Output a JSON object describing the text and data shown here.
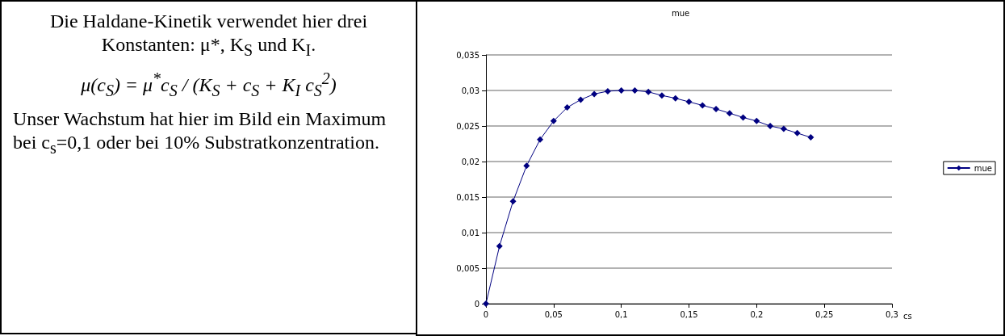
{
  "chart_data": {
    "type": "line",
    "title": "mue",
    "xlabel": "cs",
    "annotations": [
      "Die Haldane-Kinetik verwendet hier drei Konstanten: μ*, K$_{S}$ und K$_{I}$.",
      "μ(c$_{S}$) = μ$^{*}$c$_{S}$ / (K$_{S}$ + c$_{S}$ + K$_{I}$ c$_{S}$$^{2}$)",
      "Unser Wachstum hat hier im Bild ein Maximum bei c$_{s}$=0,1 oder bei 10% Substratkonzentration."
    ],
    "x": [
      0,
      0.01,
      0.02,
      0.03,
      0.04,
      0.05,
      0.06,
      0.07,
      0.08,
      0.09,
      0.1,
      0.11,
      0.12,
      0.13,
      0.14,
      0.15,
      0.16,
      0.17,
      0.18,
      0.19,
      0.2,
      0.21,
      0.22,
      0.23,
      0.24
    ],
    "series": [
      {
        "name": "mue",
        "color": "#000080",
        "values": [
          0,
          0.0081,
          0.0144,
          0.0194,
          0.0231,
          0.0257,
          0.0276,
          0.0287,
          0.0295,
          0.0299,
          0.03,
          0.03,
          0.0298,
          0.0293,
          0.0289,
          0.0284,
          0.0279,
          0.0274,
          0.0268,
          0.0262,
          0.0257,
          0.025,
          0.0246,
          0.024,
          0.0234
        ]
      }
    ],
    "xlim": [
      0,
      0.3
    ],
    "xticks": [
      0,
      {
        "value": 0.05,
        "label": "0,05"
      },
      {
        "value": 0.1,
        "label": "0,1"
      },
      {
        "value": 0.15,
        "label": "0,15"
      },
      {
        "value": 0.2,
        "label": "0,2"
      },
      {
        "value": 0.25,
        "label": "0,25"
      },
      {
        "value": 0.3,
        "label": "0,3"
      }
    ],
    "ylim": [
      0,
      0.035
    ],
    "yticks": [
      0,
      {
        "value": 0.005,
        "label": "0,005"
      },
      {
        "value": 0.01,
        "label": "0,01"
      },
      {
        "value": 0.015,
        "label": "0,015"
      },
      {
        "value": 0.02,
        "label": "0,02"
      },
      {
        "value": 0.025,
        "label": "0,025"
      },
      {
        "value": 0.03,
        "label": "0,03"
      },
      {
        "value": 0.035,
        "label": "0,035"
      }
    ],
    "grid": "y",
    "legend": "right",
    "marker": "diamond",
    "line_style": "solid"
  }
}
